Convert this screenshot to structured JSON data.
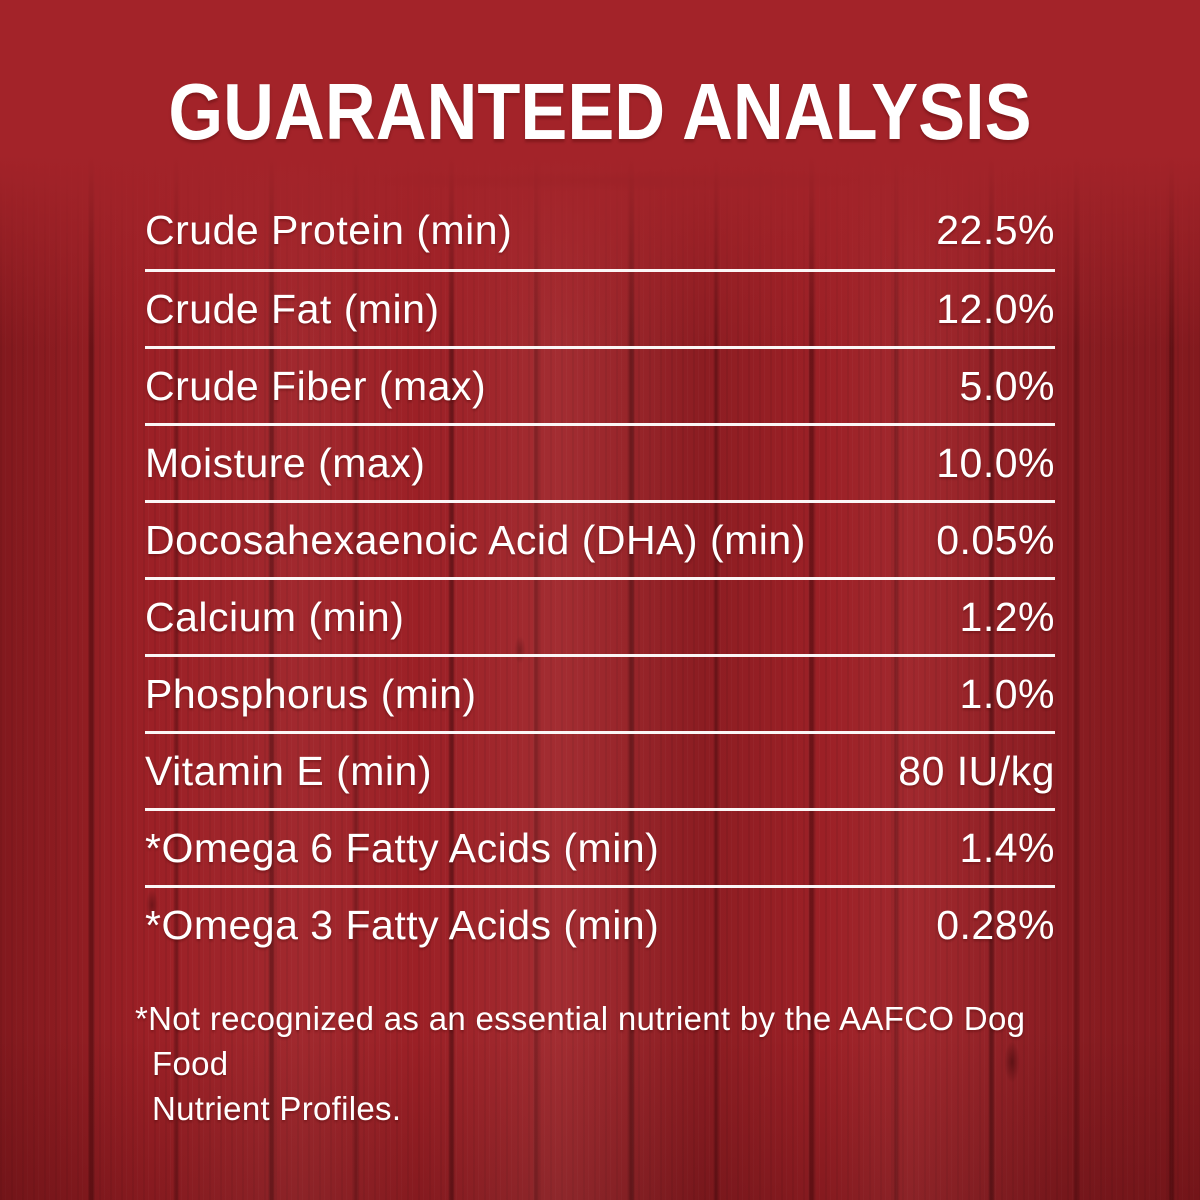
{
  "title": "GUARANTEED ANALYSIS",
  "table": {
    "rows": [
      {
        "label": "Crude Protein (min)",
        "value": "22.5%"
      },
      {
        "label": "Crude Fat (min)",
        "value": "12.0%"
      },
      {
        "label": "Crude Fiber (max)",
        "value": "5.0%"
      },
      {
        "label": "Moisture (max)",
        "value": "10.0%"
      },
      {
        "label": "Docosahexaenoic Acid (DHA) (min)",
        "value": "0.05%"
      },
      {
        "label": "Calcium (min)",
        "value": "1.2%"
      },
      {
        "label": "Phosphorus (min)",
        "value": "1.0%"
      },
      {
        "label": "Vitamin E (min)",
        "value": "80 IU/kg"
      },
      {
        "label": "*Omega 6 Fatty Acids (min)",
        "value": "1.4%"
      },
      {
        "label": "*Omega 3 Fatty Acids (min)",
        "value": "0.28%"
      }
    ]
  },
  "footnote": {
    "line1": "*Not recognized as an essential nutrient by the AAFCO Dog Food",
    "line2": "Nutrient Profiles."
  },
  "colors": {
    "background_red": "#a32329",
    "wood_seam_dark": "#2d0204",
    "rule_line": "#ffffff",
    "text": "#ffffff"
  }
}
